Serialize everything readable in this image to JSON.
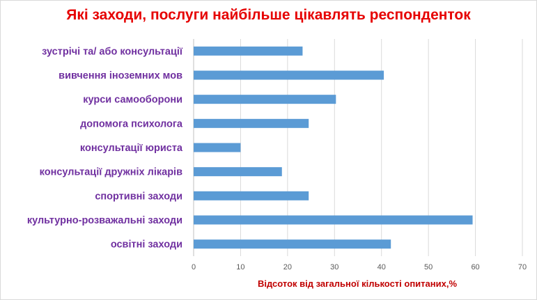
{
  "chart_data": {
    "type": "bar",
    "orientation": "horizontal",
    "title": "Які заходи, послуги найбільше цікавлять респонденток",
    "xlabel": "Відсоток від загальної кількості опитаних,%",
    "ylabel": "",
    "categories": [
      "зустрічі та/ або консультації",
      "вивчення іноземних мов",
      "курси самооборони",
      "допомога психолога",
      "консультації юриста",
      "консультації дружніх лікарів",
      "спортивні заходи",
      "культурно-розважальні заходи",
      "освітні заходи"
    ],
    "values": [
      23.2,
      40.5,
      30.3,
      24.5,
      10.0,
      18.8,
      24.5,
      59.4,
      42.0
    ],
    "xlim": [
      0,
      70
    ],
    "xticks": [
      0,
      10,
      20,
      30,
      40,
      50,
      60,
      70
    ],
    "grid": "vertical",
    "bar_color": "#5b9bd5",
    "title_color": "#e60000",
    "category_label_color": "#7030a0",
    "axis_title_color": "#c00000"
  }
}
